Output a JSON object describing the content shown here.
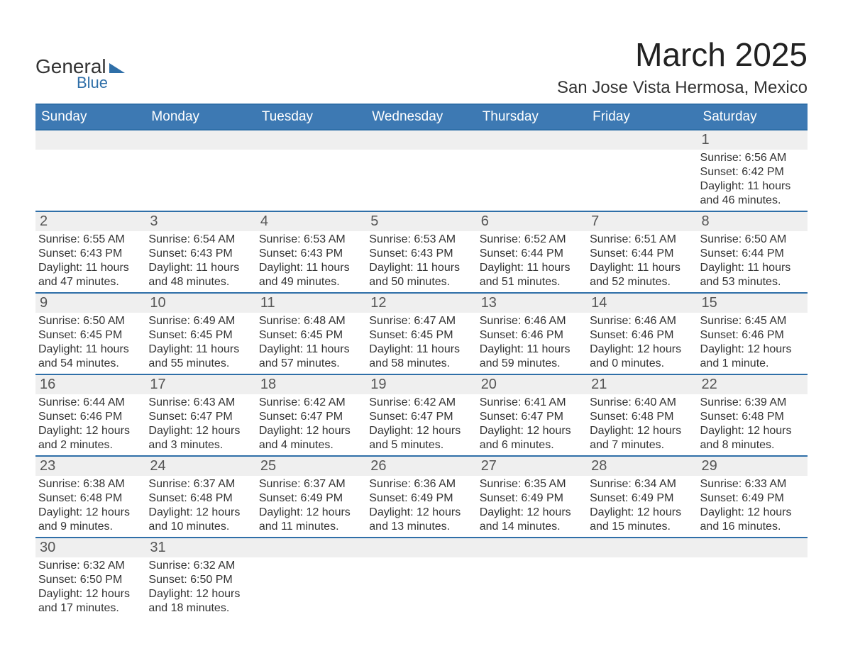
{
  "logo": {
    "line1": "General",
    "line2": "Blue",
    "accent_color": "#2f6fa8"
  },
  "title": {
    "month": "March 2025",
    "location": "San Jose Vista Hermosa, Mexico"
  },
  "colors": {
    "header_bg": "#3d79b3",
    "header_text": "#ffffff",
    "border": "#2f6fa8",
    "daynum_bg": "#efefef",
    "text": "#333333"
  },
  "typography": {
    "day_header_fontsize": 19,
    "daynum_fontsize": 20,
    "detail_fontsize": 16,
    "title_fontsize": 46,
    "location_fontsize": 24
  },
  "day_names": [
    "Sunday",
    "Monday",
    "Tuesday",
    "Wednesday",
    "Thursday",
    "Friday",
    "Saturday"
  ],
  "weeks": [
    [
      null,
      null,
      null,
      null,
      null,
      null,
      {
        "n": "1",
        "sunrise": "Sunrise: 6:56 AM",
        "sunset": "Sunset: 6:42 PM",
        "daylight": "Daylight: 11 hours and 46 minutes."
      }
    ],
    [
      {
        "n": "2",
        "sunrise": "Sunrise: 6:55 AM",
        "sunset": "Sunset: 6:43 PM",
        "daylight": "Daylight: 11 hours and 47 minutes."
      },
      {
        "n": "3",
        "sunrise": "Sunrise: 6:54 AM",
        "sunset": "Sunset: 6:43 PM",
        "daylight": "Daylight: 11 hours and 48 minutes."
      },
      {
        "n": "4",
        "sunrise": "Sunrise: 6:53 AM",
        "sunset": "Sunset: 6:43 PM",
        "daylight": "Daylight: 11 hours and 49 minutes."
      },
      {
        "n": "5",
        "sunrise": "Sunrise: 6:53 AM",
        "sunset": "Sunset: 6:43 PM",
        "daylight": "Daylight: 11 hours and 50 minutes."
      },
      {
        "n": "6",
        "sunrise": "Sunrise: 6:52 AM",
        "sunset": "Sunset: 6:44 PM",
        "daylight": "Daylight: 11 hours and 51 minutes."
      },
      {
        "n": "7",
        "sunrise": "Sunrise: 6:51 AM",
        "sunset": "Sunset: 6:44 PM",
        "daylight": "Daylight: 11 hours and 52 minutes."
      },
      {
        "n": "8",
        "sunrise": "Sunrise: 6:50 AM",
        "sunset": "Sunset: 6:44 PM",
        "daylight": "Daylight: 11 hours and 53 minutes."
      }
    ],
    [
      {
        "n": "9",
        "sunrise": "Sunrise: 6:50 AM",
        "sunset": "Sunset: 6:45 PM",
        "daylight": "Daylight: 11 hours and 54 minutes."
      },
      {
        "n": "10",
        "sunrise": "Sunrise: 6:49 AM",
        "sunset": "Sunset: 6:45 PM",
        "daylight": "Daylight: 11 hours and 55 minutes."
      },
      {
        "n": "11",
        "sunrise": "Sunrise: 6:48 AM",
        "sunset": "Sunset: 6:45 PM",
        "daylight": "Daylight: 11 hours and 57 minutes."
      },
      {
        "n": "12",
        "sunrise": "Sunrise: 6:47 AM",
        "sunset": "Sunset: 6:45 PM",
        "daylight": "Daylight: 11 hours and 58 minutes."
      },
      {
        "n": "13",
        "sunrise": "Sunrise: 6:46 AM",
        "sunset": "Sunset: 6:46 PM",
        "daylight": "Daylight: 11 hours and 59 minutes."
      },
      {
        "n": "14",
        "sunrise": "Sunrise: 6:46 AM",
        "sunset": "Sunset: 6:46 PM",
        "daylight": "Daylight: 12 hours and 0 minutes."
      },
      {
        "n": "15",
        "sunrise": "Sunrise: 6:45 AM",
        "sunset": "Sunset: 6:46 PM",
        "daylight": "Daylight: 12 hours and 1 minute."
      }
    ],
    [
      {
        "n": "16",
        "sunrise": "Sunrise: 6:44 AM",
        "sunset": "Sunset: 6:46 PM",
        "daylight": "Daylight: 12 hours and 2 minutes."
      },
      {
        "n": "17",
        "sunrise": "Sunrise: 6:43 AM",
        "sunset": "Sunset: 6:47 PM",
        "daylight": "Daylight: 12 hours and 3 minutes."
      },
      {
        "n": "18",
        "sunrise": "Sunrise: 6:42 AM",
        "sunset": "Sunset: 6:47 PM",
        "daylight": "Daylight: 12 hours and 4 minutes."
      },
      {
        "n": "19",
        "sunrise": "Sunrise: 6:42 AM",
        "sunset": "Sunset: 6:47 PM",
        "daylight": "Daylight: 12 hours and 5 minutes."
      },
      {
        "n": "20",
        "sunrise": "Sunrise: 6:41 AM",
        "sunset": "Sunset: 6:47 PM",
        "daylight": "Daylight: 12 hours and 6 minutes."
      },
      {
        "n": "21",
        "sunrise": "Sunrise: 6:40 AM",
        "sunset": "Sunset: 6:48 PM",
        "daylight": "Daylight: 12 hours and 7 minutes."
      },
      {
        "n": "22",
        "sunrise": "Sunrise: 6:39 AM",
        "sunset": "Sunset: 6:48 PM",
        "daylight": "Daylight: 12 hours and 8 minutes."
      }
    ],
    [
      {
        "n": "23",
        "sunrise": "Sunrise: 6:38 AM",
        "sunset": "Sunset: 6:48 PM",
        "daylight": "Daylight: 12 hours and 9 minutes."
      },
      {
        "n": "24",
        "sunrise": "Sunrise: 6:37 AM",
        "sunset": "Sunset: 6:48 PM",
        "daylight": "Daylight: 12 hours and 10 minutes."
      },
      {
        "n": "25",
        "sunrise": "Sunrise: 6:37 AM",
        "sunset": "Sunset: 6:49 PM",
        "daylight": "Daylight: 12 hours and 11 minutes."
      },
      {
        "n": "26",
        "sunrise": "Sunrise: 6:36 AM",
        "sunset": "Sunset: 6:49 PM",
        "daylight": "Daylight: 12 hours and 13 minutes."
      },
      {
        "n": "27",
        "sunrise": "Sunrise: 6:35 AM",
        "sunset": "Sunset: 6:49 PM",
        "daylight": "Daylight: 12 hours and 14 minutes."
      },
      {
        "n": "28",
        "sunrise": "Sunrise: 6:34 AM",
        "sunset": "Sunset: 6:49 PM",
        "daylight": "Daylight: 12 hours and 15 minutes."
      },
      {
        "n": "29",
        "sunrise": "Sunrise: 6:33 AM",
        "sunset": "Sunset: 6:49 PM",
        "daylight": "Daylight: 12 hours and 16 minutes."
      }
    ],
    [
      {
        "n": "30",
        "sunrise": "Sunrise: 6:32 AM",
        "sunset": "Sunset: 6:50 PM",
        "daylight": "Daylight: 12 hours and 17 minutes."
      },
      {
        "n": "31",
        "sunrise": "Sunrise: 6:32 AM",
        "sunset": "Sunset: 6:50 PM",
        "daylight": "Daylight: 12 hours and 18 minutes."
      },
      null,
      null,
      null,
      null,
      null
    ]
  ]
}
